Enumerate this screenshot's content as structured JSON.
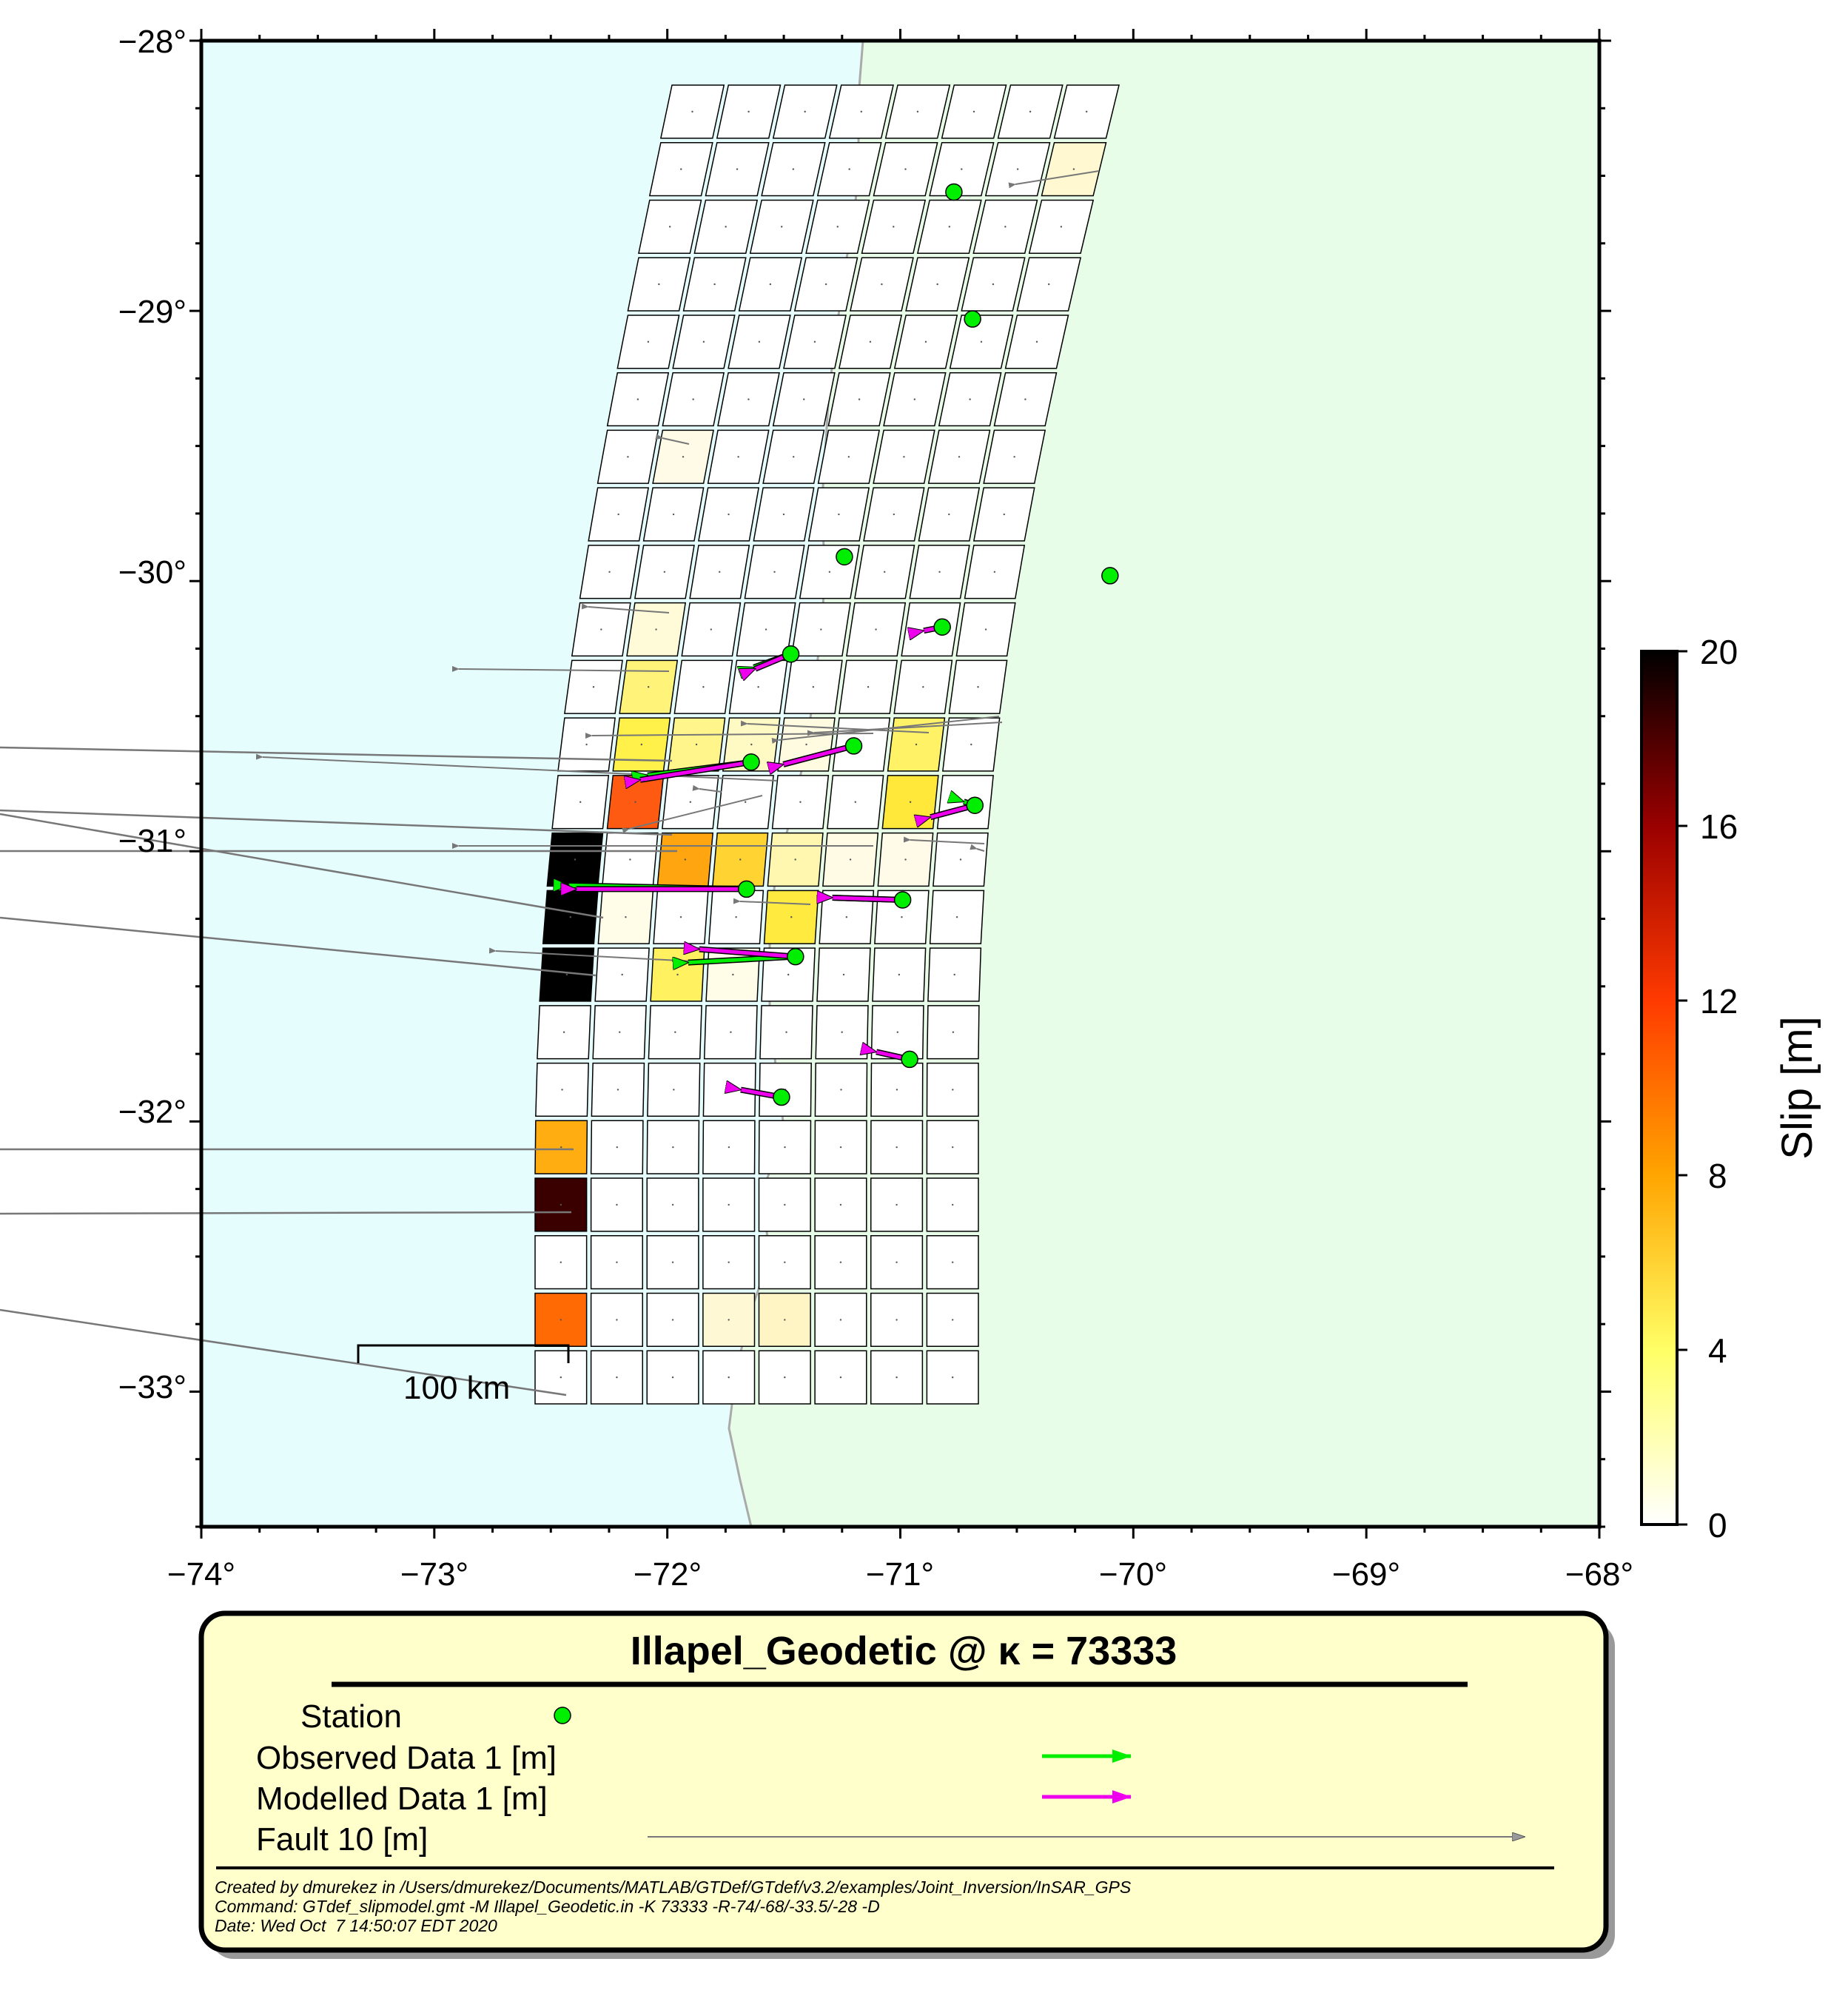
{
  "map": {
    "x_ticks": [
      "−74°",
      "−73°",
      "−72°",
      "−71°",
      "−70°",
      "−69°",
      "−68°"
    ],
    "y_ticks": [
      "−28°",
      "−29°",
      "−30°",
      "−31°",
      "−32°",
      "−33°"
    ],
    "lon_range": [
      -74,
      -68
    ],
    "lat_range": [
      -33.5,
      -28
    ],
    "ocean_color": "#e6fdfd",
    "land_color": "#e8fde8",
    "scale_bar_label": "100 km",
    "stations": [
      {
        "lon": -70.77,
        "lat": -28.56
      },
      {
        "lon": -70.69,
        "lat": -29.03
      },
      {
        "lon": -71.24,
        "lat": -29.91
      },
      {
        "lon": -70.1,
        "lat": -29.98
      },
      {
        "lon": -70.82,
        "lat": -30.17
      },
      {
        "lon": -71.47,
        "lat": -30.27
      },
      {
        "lon": -71.2,
        "lat": -30.61
      },
      {
        "lon": -71.64,
        "lat": -30.67
      },
      {
        "lon": -70.68,
        "lat": -30.83
      },
      {
        "lon": -71.66,
        "lat": -31.14
      },
      {
        "lon": -70.99,
        "lat": -31.18
      },
      {
        "lon": -71.45,
        "lat": -31.39
      },
      {
        "lon": -70.96,
        "lat": -31.77
      },
      {
        "lon": -71.51,
        "lat": -31.91
      }
    ]
  },
  "colorbar": {
    "title": "Slip [m]",
    "labels": [
      "0",
      "4",
      "8",
      "12",
      "16",
      "20"
    ],
    "range": [
      0,
      20
    ]
  },
  "legend": {
    "title": "Illapel_Geodetic @ κ = 73333",
    "items": [
      {
        "label": "Station",
        "symbol": "station-dot"
      },
      {
        "label": "Observed Data 1 [m]",
        "symbol": "green-arrow",
        "color": "#00ee00"
      },
      {
        "label": "Modelled Data 1 [m]",
        "symbol": "magenta-arrow",
        "color": "#ee00ee"
      },
      {
        "label": "Fault 10 [m]",
        "symbol": "gray-arrow",
        "color": "#777777"
      }
    ],
    "credits": [
      "Created by dmurekez in /Users/dmurekez/Documents/MATLAB/GTDef/GTdef/v3.2/examples/Joint_Inversion/InSAR_GPS",
      "Command: GTdef_slipmodel.gmt -M Illapel_Geodetic.in -K 73333 -R-74/-68/-33.5/-28 -D",
      "Date: Wed Oct  7 14:50:07 EDT 2020"
    ]
  }
}
